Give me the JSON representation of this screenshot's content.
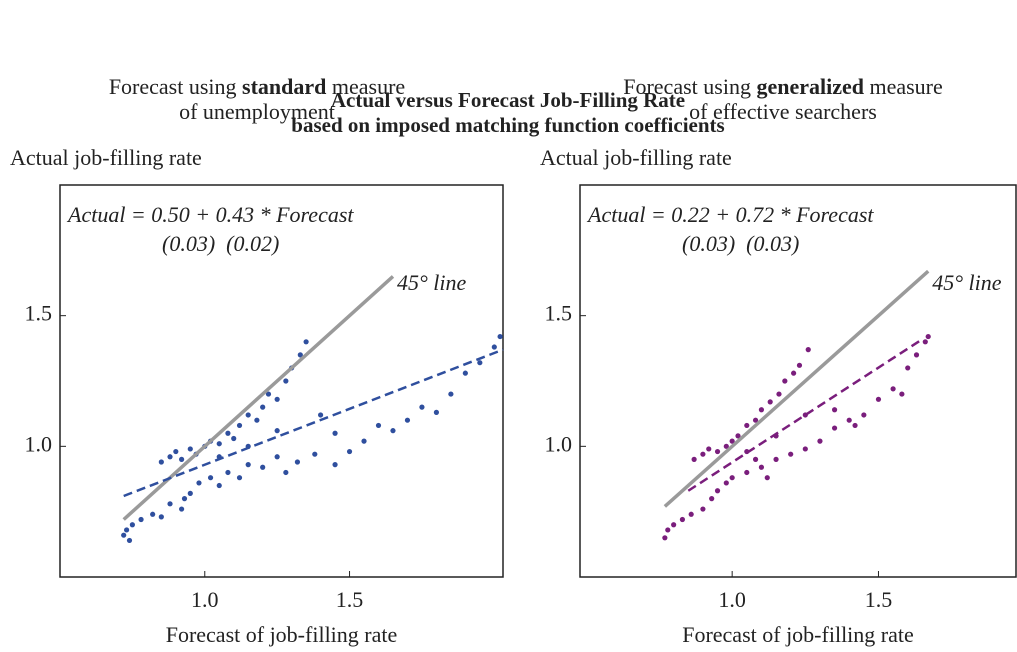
{
  "title": [
    "Actual versus Forecast Job-Filling Rate",
    "based on imposed matching function coefficients"
  ],
  "chart_data": [
    {
      "type": "scatter",
      "subtitle": {
        "pre": "Forecast using ",
        "bold": "standard",
        "post": " measure",
        "line2": "of unemployment"
      },
      "y_label": "Actual job-filling rate",
      "x_label": "Forecast of job-filling rate",
      "equation": "Actual = 0.50 + 0.43 * Forecast",
      "std_errors": "(0.03)  (0.02)",
      "color": "#2f4f9e",
      "xlim": [
        0.5,
        2.03
      ],
      "ylim": [
        0.5,
        2.0
      ],
      "xticks": [
        {
          "value": 1,
          "label": "1.0"
        },
        {
          "value": 1.5,
          "label": "1.5"
        }
      ],
      "yticks": [
        {
          "value": 1,
          "label": "1.0"
        },
        {
          "value": 1.5,
          "label": "1.5"
        }
      ],
      "ref_line": {
        "label": "45° line",
        "color": "#9a9a9a",
        "x": [
          0.72,
          1.65
        ],
        "y": [
          0.72,
          1.65
        ]
      },
      "fit_line": {
        "x": [
          0.72,
          2.03
        ],
        "y": [
          0.81,
          1.37
        ]
      },
      "x": [
        0.72,
        0.73,
        0.74,
        0.75,
        0.78,
        0.82,
        0.85,
        0.88,
        0.92,
        0.93,
        0.95,
        0.98,
        1.02,
        1.05,
        1.08,
        1.12,
        1.15,
        1.2,
        1.25,
        1.28,
        1.32,
        1.38,
        1.45,
        1.5,
        1.55,
        1.6,
        1.65,
        1.7,
        1.75,
        1.8,
        1.85,
        1.9,
        1.95,
        2.0,
        2.02,
        0.85,
        0.88,
        0.9,
        0.92,
        0.95,
        0.97,
        1.0,
        1.02,
        1.05,
        1.08,
        1.1,
        1.12,
        1.15,
        1.18,
        1.2,
        1.22,
        1.25,
        1.28,
        1.3,
        1.33,
        1.35,
        1.05,
        1.15,
        1.25,
        1.4,
        1.45
      ],
      "y": [
        0.66,
        0.68,
        0.64,
        0.7,
        0.72,
        0.74,
        0.73,
        0.78,
        0.76,
        0.8,
        0.82,
        0.86,
        0.88,
        0.85,
        0.9,
        0.88,
        0.93,
        0.92,
        0.96,
        0.9,
        0.94,
        0.97,
        0.93,
        0.98,
        1.02,
        1.08,
        1.06,
        1.1,
        1.15,
        1.13,
        1.2,
        1.28,
        1.32,
        1.38,
        1.42,
        0.94,
        0.96,
        0.98,
        0.95,
        0.99,
        0.97,
        1.0,
        1.02,
        1.01,
        1.05,
        1.03,
        1.08,
        1.12,
        1.1,
        1.15,
        1.2,
        1.18,
        1.25,
        1.3,
        1.35,
        1.4,
        0.96,
        1.0,
        1.06,
        1.12,
        1.05
      ]
    },
    {
      "type": "scatter",
      "subtitle": {
        "pre": "Forecast using ",
        "bold": "generalized",
        "post": " measure",
        "line2": "of effective searchers"
      },
      "y_label": "Actual job-filling rate",
      "x_label": "Forecast of job-filling rate",
      "equation": "Actual = 0.22 + 0.72 * Forecast",
      "std_errors": "(0.03)  (0.03)",
      "color": "#7a1e7c",
      "xlim": [
        0.48,
        1.97
      ],
      "ylim": [
        0.5,
        2.0
      ],
      "xticks": [
        {
          "value": 1,
          "label": "1.0"
        },
        {
          "value": 1.5,
          "label": "1.5"
        }
      ],
      "yticks": [
        {
          "value": 1,
          "label": "1.0"
        },
        {
          "value": 1.5,
          "label": "1.5"
        }
      ],
      "ref_line": {
        "label": "45° line",
        "color": "#9a9a9a",
        "x": [
          0.77,
          1.67
        ],
        "y": [
          0.77,
          1.67
        ]
      },
      "fit_line": {
        "x": [
          0.85,
          1.65
        ],
        "y": [
          0.83,
          1.41
        ]
      },
      "x": [
        0.77,
        0.78,
        0.8,
        0.83,
        0.86,
        0.9,
        0.93,
        0.95,
        0.98,
        1.0,
        1.05,
        1.1,
        1.15,
        1.2,
        1.25,
        1.3,
        1.35,
        1.4,
        1.45,
        1.5,
        1.55,
        1.6,
        1.63,
        1.66,
        1.67,
        1.58,
        1.12,
        1.08,
        0.87,
        0.9,
        0.92,
        0.95,
        0.98,
        1.0,
        1.02,
        1.05,
        1.08,
        1.1,
        1.13,
        1.16,
        1.18,
        1.21,
        1.23,
        1.26,
        1.05,
        1.15,
        1.25,
        1.35,
        1.42
      ],
      "y": [
        0.65,
        0.68,
        0.7,
        0.72,
        0.74,
        0.76,
        0.8,
        0.83,
        0.86,
        0.88,
        0.9,
        0.92,
        0.95,
        0.97,
        0.99,
        1.02,
        1.07,
        1.1,
        1.12,
        1.18,
        1.22,
        1.3,
        1.35,
        1.4,
        1.42,
        1.2,
        0.88,
        0.95,
        0.95,
        0.97,
        0.99,
        0.98,
        1.0,
        1.02,
        1.04,
        1.08,
        1.1,
        1.14,
        1.17,
        1.2,
        1.25,
        1.28,
        1.31,
        1.37,
        0.98,
        1.04,
        1.12,
        1.14,
        1.08
      ]
    }
  ]
}
